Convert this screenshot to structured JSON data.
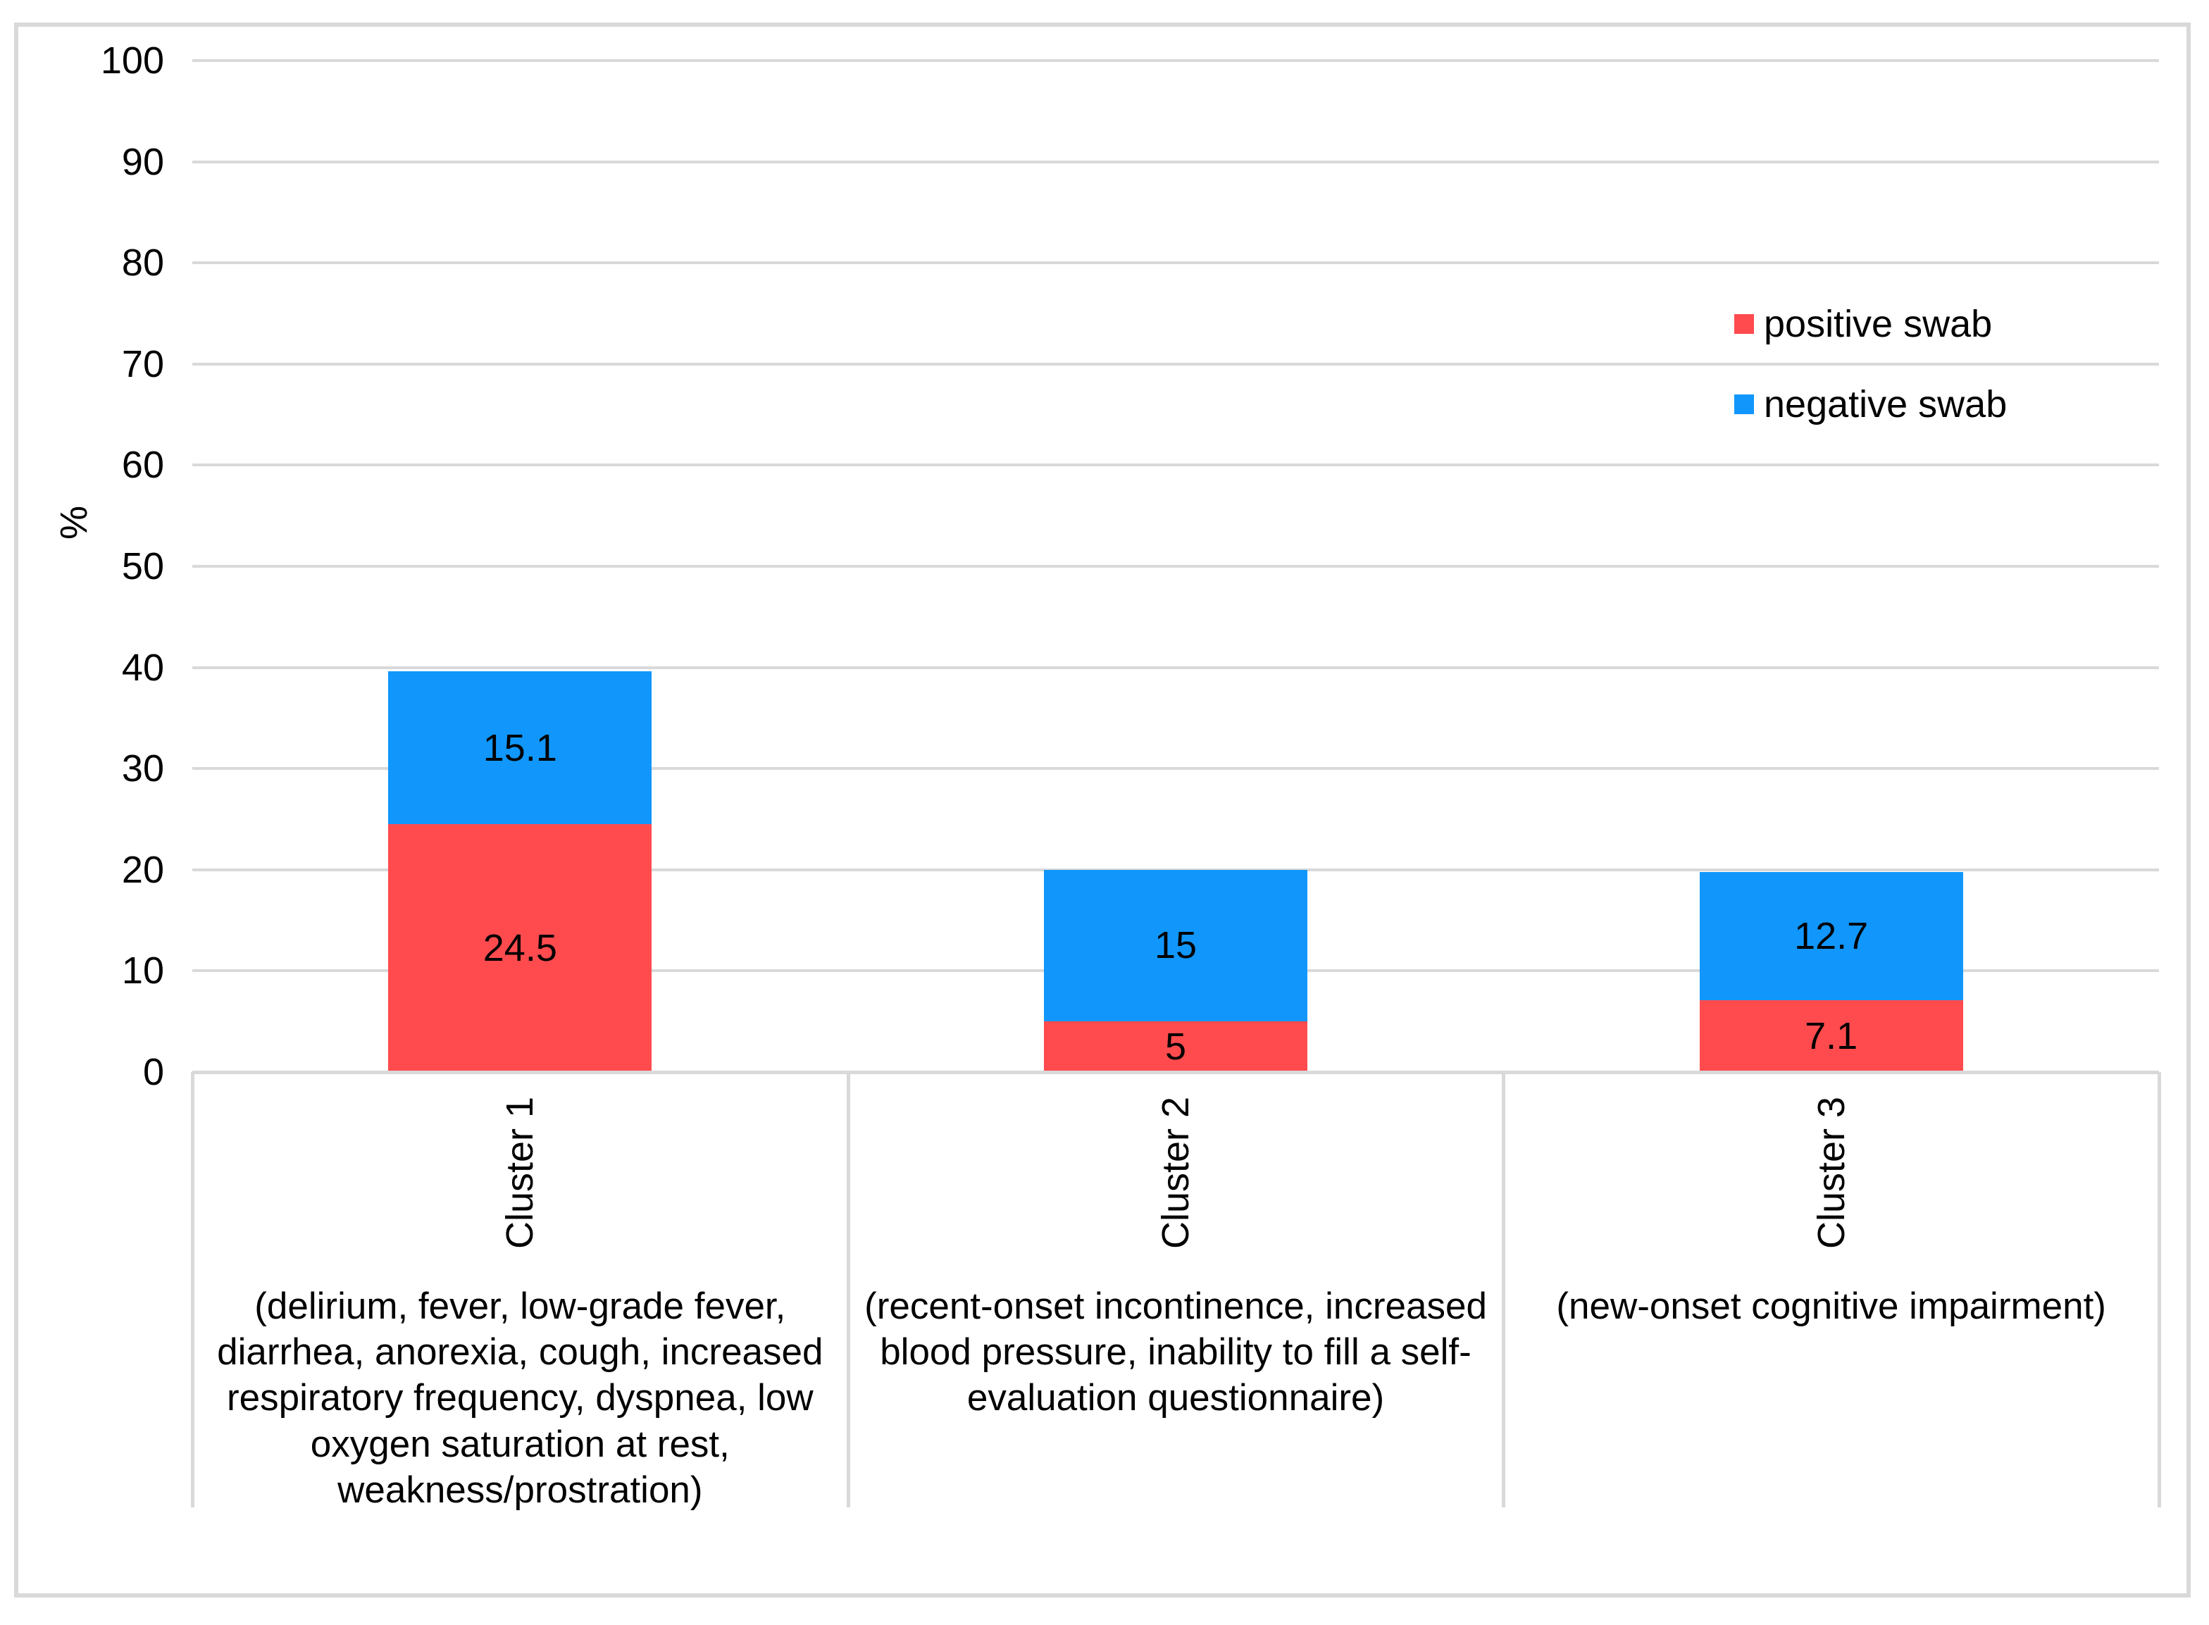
{
  "chart_data": {
    "type": "bar",
    "stacked": true,
    "title": "",
    "ylabel": "%",
    "ylim": [
      0,
      100
    ],
    "yticks": [
      0,
      10,
      20,
      30,
      40,
      50,
      60,
      70,
      80,
      90,
      100
    ],
    "grid": true,
    "legend_position": "upper-right",
    "categories": [
      "Cluster 1",
      "Cluster 2",
      "Cluster 3"
    ],
    "category_descriptions": [
      "(delirium, fever, low-grade fever,\ndiarrhea, anorexia, cough, increased\nrespiratory frequency, dyspnea, low\noxygen saturation at rest,\nweakness/prostration)",
      "(recent-onset incontinence, increased\nblood pressure, inability to fill a self-\nevaluation questionnaire)",
      "(new-onset cognitive impairment)"
    ],
    "series": [
      {
        "name": "positive swab",
        "color": "#ff4b4e",
        "values": [
          24.5,
          5,
          7.1
        ]
      },
      {
        "name": "negative swab",
        "color": "#1197fb",
        "values": [
          15.1,
          15,
          12.7
        ]
      }
    ],
    "colors": {
      "grid": "#d9d9d9",
      "axis": "#d9d9d9",
      "figure_border": "#d9d9d9",
      "text": "#000000",
      "background": "#ffffff"
    }
  }
}
